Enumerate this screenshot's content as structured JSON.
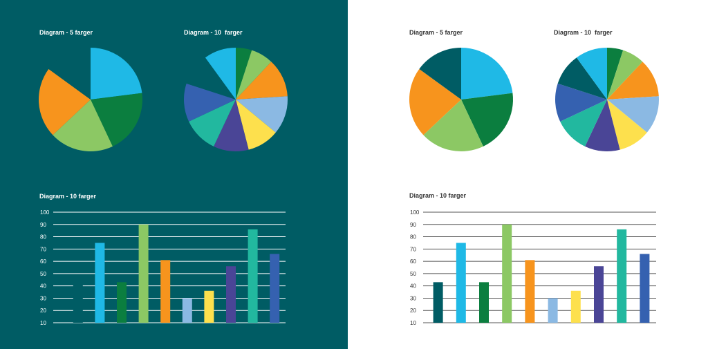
{
  "colors": {
    "dark_background": "#005c64",
    "light_background": "#ffffff",
    "palette": [
      "#005c64",
      "#1fb9e6",
      "#0b7e3f",
      "#8cc864",
      "#f7941d",
      "#8bb9e3",
      "#fde04d",
      "#4a4596",
      "#22b89f",
      "#3561b0"
    ]
  },
  "chart_data": [
    {
      "type": "pie",
      "panel": "dark",
      "title": "Diagram - 5 farger",
      "values": [
        23,
        20,
        20,
        22,
        15
      ],
      "colors": [
        "#1fb9e6",
        "#0b7e3f",
        "#8cc864",
        "#f7941d",
        "#005c64"
      ]
    },
    {
      "type": "pie",
      "panel": "dark",
      "title": "Diagram - 10  farger",
      "values": [
        5,
        7,
        12,
        12,
        10,
        11,
        11,
        12,
        10,
        10
      ],
      "colors": [
        "#0b7e3f",
        "#8cc864",
        "#f7941d",
        "#8bb9e3",
        "#fde04d",
        "#4a4596",
        "#22b89f",
        "#3561b0",
        "#005c64",
        "#1fb9e6"
      ]
    },
    {
      "type": "bar",
      "panel": "dark",
      "title": "Diagram - 10 farger",
      "ylim": [
        10,
        100
      ],
      "ticks": [
        10,
        20,
        30,
        40,
        50,
        60,
        70,
        80,
        90,
        100
      ],
      "values": [
        43,
        75,
        43,
        90,
        61,
        30,
        36,
        56,
        86,
        66
      ],
      "colors": [
        "#005c64",
        "#1fb9e6",
        "#0b7e3f",
        "#8cc864",
        "#f7941d",
        "#8bb9e3",
        "#fde04d",
        "#4a4596",
        "#22b89f",
        "#3561b0"
      ]
    },
    {
      "type": "pie",
      "panel": "light",
      "title": "Diagram - 5 farger",
      "values": [
        23,
        20,
        20,
        22,
        15
      ],
      "colors": [
        "#1fb9e6",
        "#0b7e3f",
        "#8cc864",
        "#f7941d",
        "#005c64"
      ]
    },
    {
      "type": "pie",
      "panel": "light",
      "title": "Diagram - 10  farger",
      "values": [
        5,
        7,
        12,
        12,
        10,
        11,
        11,
        12,
        10,
        10
      ],
      "colors": [
        "#0b7e3f",
        "#8cc864",
        "#f7941d",
        "#8bb9e3",
        "#fde04d",
        "#4a4596",
        "#22b89f",
        "#3561b0",
        "#005c64",
        "#1fb9e6"
      ]
    },
    {
      "type": "bar",
      "panel": "light",
      "title": "Diagram - 10 farger",
      "ylim": [
        10,
        100
      ],
      "ticks": [
        10,
        20,
        30,
        40,
        50,
        60,
        70,
        80,
        90,
        100
      ],
      "values": [
        43,
        75,
        43,
        90,
        61,
        30,
        36,
        56,
        86,
        66
      ],
      "colors": [
        "#005c64",
        "#1fb9e6",
        "#0b7e3f",
        "#8cc864",
        "#f7941d",
        "#8bb9e3",
        "#fde04d",
        "#4a4596",
        "#22b89f",
        "#3561b0"
      ]
    }
  ]
}
